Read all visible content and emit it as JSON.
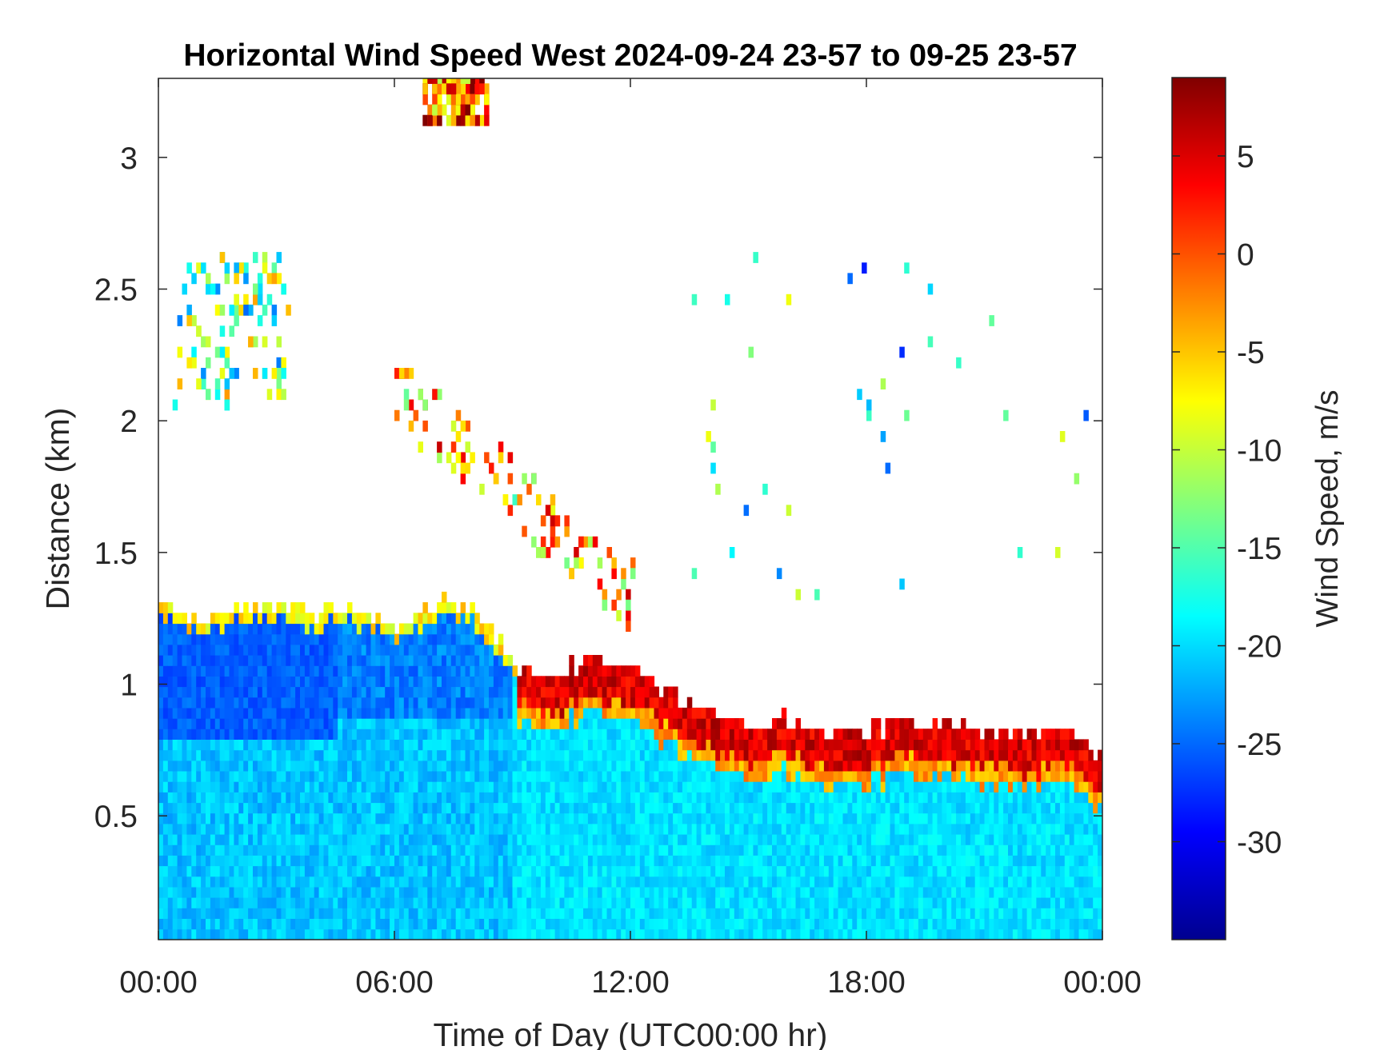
{
  "chart_data": {
    "type": "heatmap",
    "title": "Horizontal Wind Speed West 2024-09-24 23-57 to 09-25 23-57",
    "xlabel": "Time of Day (UTC00:00 hr)",
    "ylabel": "Distance (km)",
    "colorbar_label": "Wind Speed, m/s",
    "xlim": [
      0,
      24
    ],
    "ylim": [
      0.03,
      3.3
    ],
    "clim": [
      -35,
      9
    ],
    "x_ticks": [
      {
        "value": 0,
        "label": "00:00"
      },
      {
        "value": 6,
        "label": "06:00"
      },
      {
        "value": 12,
        "label": "12:00"
      },
      {
        "value": 18,
        "label": "18:00"
      },
      {
        "value": 24,
        "label": "00:00"
      }
    ],
    "y_ticks": [
      {
        "value": 0.5,
        "label": "0.5"
      },
      {
        "value": 1,
        "label": "1"
      },
      {
        "value": 1.5,
        "label": "1.5"
      },
      {
        "value": 2,
        "label": "2"
      },
      {
        "value": 2.5,
        "label": "2.5"
      },
      {
        "value": 3,
        "label": "3"
      }
    ],
    "colorbar_ticks": [
      {
        "value": 5,
        "label": "5"
      },
      {
        "value": 0,
        "label": "0"
      },
      {
        "value": -5,
        "label": "-5"
      },
      {
        "value": -10,
        "label": "-10"
      },
      {
        "value": -15,
        "label": "-15"
      },
      {
        "value": -20,
        "label": "-20"
      },
      {
        "value": -25,
        "label": "-25"
      },
      {
        "value": -30,
        "label": "-30"
      }
    ],
    "colormap": [
      "#00008f",
      "#0000ff",
      "#00ffff",
      "#ffff00",
      "#ff0000",
      "#800000"
    ],
    "grid": false,
    "boundary_layer_top_km": {
      "hours": [
        0,
        1,
        2,
        3,
        4,
        5,
        6,
        7,
        8,
        9,
        10,
        11,
        12,
        13,
        14,
        15,
        16,
        17,
        18,
        19,
        20,
        21,
        22,
        23,
        24
      ],
      "values": [
        1.28,
        1.22,
        1.26,
        1.28,
        1.25,
        1.27,
        1.2,
        1.3,
        1.25,
        1.05,
        1.02,
        1.08,
        1.02,
        0.95,
        0.88,
        0.82,
        0.85,
        0.8,
        0.8,
        0.85,
        0.82,
        0.8,
        0.78,
        0.8,
        0.7
      ]
    },
    "aloft_features": [
      {
        "name": "upper-left-cluster",
        "hour_range": [
          0.4,
          3.2
        ],
        "km_range": [
          2.05,
          2.6
        ],
        "typical_speed": -14
      },
      {
        "name": "diagonal-descending-layer",
        "hour_range": [
          5.9,
          12.0
        ],
        "km_range": [
          1.3,
          2.1
        ],
        "typical_speed": -5
      },
      {
        "name": "top-edge-echoes",
        "hour_range": [
          6.7,
          8.3
        ],
        "km_range": [
          3.1,
          3.3
        ],
        "typical_speed": 0
      },
      {
        "name": "isolated-echoes",
        "hour_range": [
          13.5,
          23.5
        ],
        "km_range": [
          1.3,
          2.7
        ],
        "typical_speed": -18
      }
    ]
  }
}
